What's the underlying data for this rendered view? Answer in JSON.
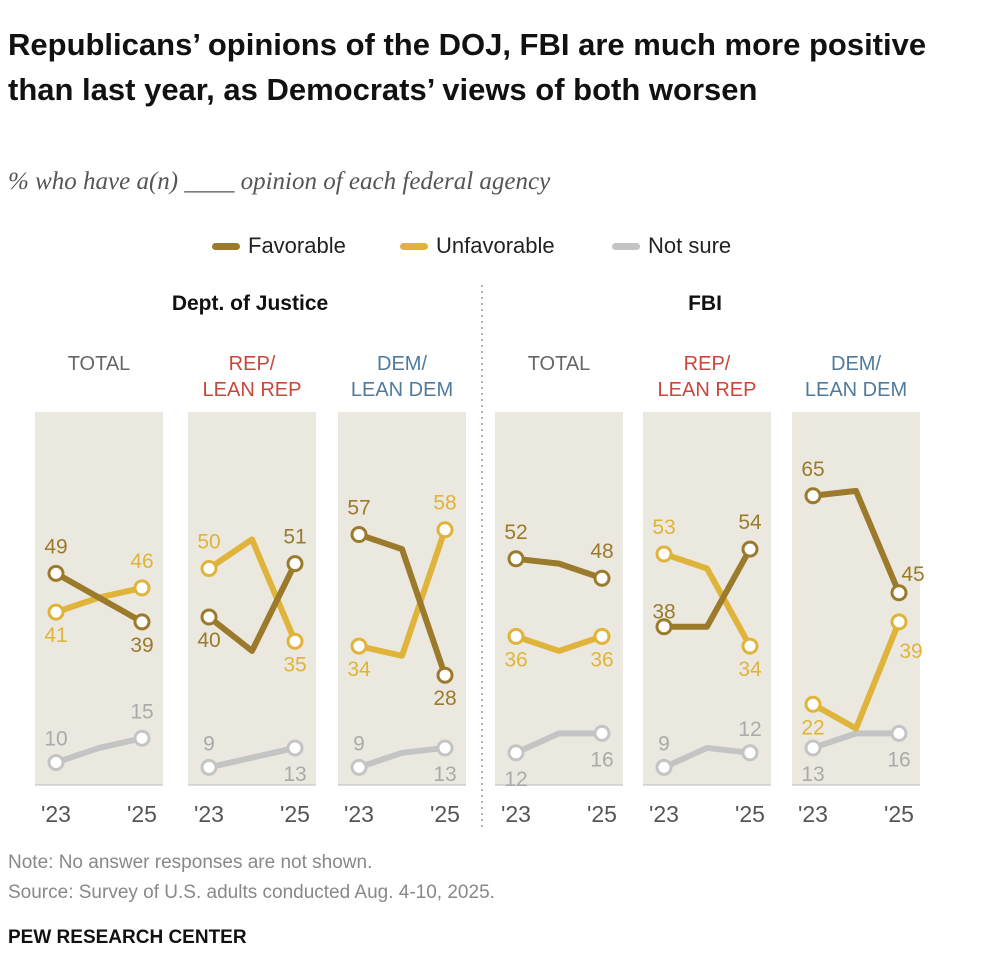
{
  "header": {
    "title": "Republicans’ opinions of the DOJ, FBI are much more positive than last year, as Democrats’ views of both worsen",
    "subtitle": "% who have a(n) ____ opinion of each federal agency"
  },
  "legend": [
    {
      "label": "Favorable",
      "color": "#9c7a2c"
    },
    {
      "label": "Unfavorable",
      "color": "#e0b43a"
    },
    {
      "label": "Not sure",
      "color": "#c4c4c4"
    }
  ],
  "colors": {
    "favorable": "#9c7a2c",
    "unfavorable": "#e0b43a",
    "not_sure": "#c4c4c4",
    "panel_bg": "#ebe9df",
    "total": "#666666",
    "rep": "#c8463b",
    "dem": "#4f7a9c"
  },
  "chart_data": {
    "type": "line",
    "title": "Republicans’ opinions of the DOJ, FBI are much more positive than last year, as Democrats’ views of both worsen",
    "ylim": [
      0,
      100
    ],
    "x": [
      "'23",
      "'25"
    ],
    "agencies": [
      {
        "name": "Dept. of Justice",
        "groups": [
          {
            "label": [
              "TOTAL"
            ],
            "party": "total",
            "series": [
              {
                "name": "Favorable",
                "values": [
                  49,
                  39
                ],
                "path": [
                  49,
                  44,
                  39
                ]
              },
              {
                "name": "Unfavorable",
                "values": [
                  41,
                  46
                ],
                "path": [
                  41,
                  44,
                  46
                ]
              },
              {
                "name": "Not sure",
                "values": [
                  10,
                  15
                ],
                "path": [
                  10,
                  13,
                  15
                ]
              }
            ]
          },
          {
            "label": [
              "REP/",
              "LEAN REP"
            ],
            "party": "rep",
            "series": [
              {
                "name": "Favorable",
                "values": [
                  40,
                  51
                ],
                "path": [
                  40,
                  33,
                  51
                ]
              },
              {
                "name": "Unfavorable",
                "values": [
                  50,
                  35
                ],
                "path": [
                  50,
                  56,
                  35
                ]
              },
              {
                "name": "Not sure",
                "values": [
                  9,
                  13
                ],
                "path": [
                  9,
                  11,
                  13
                ]
              }
            ]
          },
          {
            "label": [
              "DEM/",
              "LEAN DEM"
            ],
            "party": "dem",
            "series": [
              {
                "name": "Favorable",
                "values": [
                  57,
                  28
                ],
                "path": [
                  57,
                  54,
                  28
                ]
              },
              {
                "name": "Unfavorable",
                "values": [
                  34,
                  58
                ],
                "path": [
                  34,
                  32,
                  58
                ]
              },
              {
                "name": "Not sure",
                "values": [
                  9,
                  13
                ],
                "path": [
                  9,
                  12,
                  13
                ]
              }
            ]
          }
        ]
      },
      {
        "name": "FBI",
        "groups": [
          {
            "label": [
              "TOTAL"
            ],
            "party": "total",
            "series": [
              {
                "name": "Favorable",
                "values": [
                  52,
                  48
                ],
                "path": [
                  52,
                  51,
                  48
                ]
              },
              {
                "name": "Unfavorable",
                "values": [
                  36,
                  36
                ],
                "path": [
                  36,
                  33,
                  36
                ]
              },
              {
                "name": "Not sure",
                "values": [
                  12,
                  16
                ],
                "path": [
                  12,
                  16,
                  16
                ]
              }
            ]
          },
          {
            "label": [
              "REP/",
              "LEAN REP"
            ],
            "party": "rep",
            "series": [
              {
                "name": "Favorable",
                "values": [
                  38,
                  54
                ],
                "path": [
                  38,
                  38,
                  54
                ]
              },
              {
                "name": "Unfavorable",
                "values": [
                  53,
                  34
                ],
                "path": [
                  53,
                  50,
                  34
                ]
              },
              {
                "name": "Not sure",
                "values": [
                  9,
                  12
                ],
                "path": [
                  9,
                  13,
                  12
                ]
              }
            ]
          },
          {
            "label": [
              "DEM/",
              "LEAN DEM"
            ],
            "party": "dem",
            "series": [
              {
                "name": "Favorable",
                "values": [
                  65,
                  45
                ],
                "path": [
                  65,
                  66,
                  45
                ]
              },
              {
                "name": "Unfavorable",
                "values": [
                  22,
                  39
                ],
                "path": [
                  22,
                  17,
                  39
                ]
              },
              {
                "name": "Not sure",
                "values": [
                  13,
                  16
                ],
                "path": [
                  13,
                  16,
                  16
                ]
              }
            ]
          }
        ]
      }
    ]
  },
  "footer": {
    "note": "Note: No answer responses are not shown.",
    "source": "Source: Survey of U.S. adults conducted Aug. 4-10, 2025.",
    "org": "PEW RESEARCH CENTER"
  }
}
